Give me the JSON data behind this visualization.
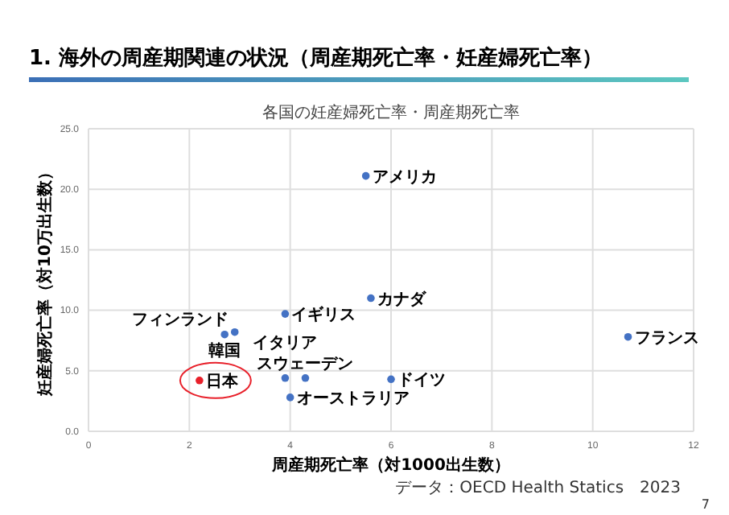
{
  "chart_data": {
    "type": "scatter",
    "title": "1. 海外の周産期関連の状況（周産期死亡率・妊産婦死亡率）",
    "subtitle": "各国の妊産婦死亡率・周産期死亡率",
    "xlabel": "周産期死亡率（対1000出生数）",
    "ylabel": "妊産婦死亡率（対10万出生数）",
    "xlim": [
      0,
      12
    ],
    "xticks": [
      0,
      2,
      4,
      6,
      8,
      10,
      12
    ],
    "ylim": [
      0,
      25
    ],
    "yticks": [
      {
        "value": 0,
        "label": "0.0"
      },
      {
        "value": 5,
        "label": "5.0"
      },
      {
        "value": 10,
        "label": "10.0"
      },
      {
        "value": 15,
        "label": "15.0"
      },
      {
        "value": 20,
        "label": "20.0"
      },
      {
        "value": 25,
        "label": "25.0"
      }
    ],
    "grid": true,
    "marker": "circle",
    "series": [
      {
        "color": "#4472c4",
        "x": [
          5.5,
          5.6,
          3.9,
          2.7,
          2.9,
          3.9,
          4.3,
          6.0,
          4.0,
          10.7
        ],
        "values": [
          21.1,
          11.0,
          9.7,
          8.0,
          8.2,
          4.4,
          4.4,
          4.3,
          2.8,
          7.8
        ]
      },
      {
        "color": "#e8202a",
        "x": [
          2.2
        ],
        "values": [
          4.2
        ]
      }
    ],
    "annotations": [
      {
        "text": "日本",
        "x": 2.2,
        "y": 4.2
      },
      {
        "text": "ドイツ",
        "x": 6.0,
        "y": 4.3
      },
      {
        "text": "スウェーデン",
        "x": 4.3,
        "y": 4.4
      },
      {
        "text": "イタリア",
        "x": 3.9,
        "y": 4.4
      },
      {
        "text": "オーストラリア",
        "x": 4.0,
        "y": 2.8
      },
      {
        "text": "アメリカ",
        "x": 5.5,
        "y": 21.1
      },
      {
        "text": "カナダ",
        "x": 5.6,
        "y": 11.0
      },
      {
        "text": "イギリス",
        "x": 3.9,
        "y": 9.7
      },
      {
        "text": "フィンランド",
        "x": 2.9,
        "y": 8.2
      },
      {
        "text": "韓国",
        "x": 2.7,
        "y": 8.0
      },
      {
        "text": "フランス",
        "x": 10.7,
        "y": 7.8
      },
      "データ：OECD Health Statics　2023",
      "7"
    ]
  }
}
